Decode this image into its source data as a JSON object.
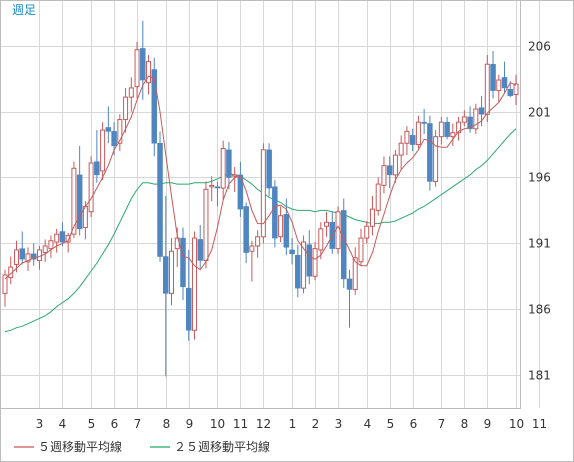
{
  "period_label": "週足",
  "legend": [
    {
      "label": "５週移動平均線",
      "color": "#c85a5a"
    },
    {
      "label": "２５週移動平均線",
      "color": "#2aa870"
    }
  ],
  "colors": {
    "up": "#c85a5a",
    "down": "#4f86c0",
    "grid": "#d7d7d7",
    "border": "#bcbcbc"
  },
  "chart_data": {
    "type": "candlestick",
    "y_ticks": [
      181,
      186,
      191,
      196,
      201,
      206
    ],
    "ylim": [
      178.5,
      209.4
    ],
    "x_tick_labels": [
      {
        "i": 6,
        "label": "3"
      },
      {
        "i": 10,
        "label": "4"
      },
      {
        "i": 15,
        "label": "5"
      },
      {
        "i": 19,
        "label": "6"
      },
      {
        "i": 23,
        "label": "7"
      },
      {
        "i": 28,
        "label": "8"
      },
      {
        "i": 32,
        "label": "9"
      },
      {
        "i": 37,
        "label": "10"
      },
      {
        "i": 41,
        "label": "11"
      },
      {
        "i": 45,
        "label": "12"
      },
      {
        "i": 50,
        "label": "1"
      },
      {
        "i": 54,
        "label": "2"
      },
      {
        "i": 58,
        "label": "3"
      },
      {
        "i": 63,
        "label": "4"
      },
      {
        "i": 67,
        "label": "5"
      },
      {
        "i": 71,
        "label": "6"
      },
      {
        "i": 76,
        "label": "7"
      },
      {
        "i": 80,
        "label": "8"
      },
      {
        "i": 84,
        "label": "9"
      },
      {
        "i": 89,
        "label": "10"
      },
      {
        "i": 93,
        "label": "11"
      }
    ],
    "candles": [
      [
        187.2,
        189.0,
        186.2,
        188.6
      ],
      [
        188.4,
        190.0,
        187.9,
        189.2
      ],
      [
        189.4,
        191.2,
        188.8,
        190.5
      ],
      [
        190.6,
        191.9,
        189.4,
        189.8
      ],
      [
        189.6,
        190.7,
        188.9,
        190.2
      ],
      [
        190.2,
        191.0,
        189.3,
        189.8
      ],
      [
        189.7,
        190.8,
        189.0,
        190.5
      ],
      [
        190.3,
        191.3,
        189.6,
        190.8
      ],
      [
        190.6,
        191.6,
        189.9,
        191.2
      ],
      [
        191.1,
        192.1,
        190.3,
        191.7
      ],
      [
        191.9,
        192.6,
        190.8,
        191.1
      ],
      [
        191.1,
        191.8,
        190.3,
        191.6
      ],
      [
        191.7,
        197.2,
        191.4,
        196.7
      ],
      [
        196.2,
        198.4,
        191.6,
        192.1
      ],
      [
        192.2,
        194.2,
        191.3,
        193.8
      ],
      [
        193.4,
        197.6,
        193.0,
        197.1
      ],
      [
        197.2,
        199.6,
        195.6,
        196.2
      ],
      [
        196.5,
        200.2,
        195.8,
        199.6
      ],
      [
        199.8,
        201.4,
        198.6,
        199.5
      ],
      [
        199.5,
        200.2,
        197.7,
        198.4
      ],
      [
        198.6,
        200.8,
        198.0,
        200.4
      ],
      [
        200.4,
        202.8,
        199.4,
        202.1
      ],
      [
        202.1,
        203.6,
        201.0,
        202.8
      ],
      [
        202.9,
        206.3,
        202.0,
        205.7
      ],
      [
        205.8,
        207.9,
        201.9,
        203.4
      ],
      [
        203.2,
        205.3,
        202.3,
        204.8
      ],
      [
        204.2,
        205.1,
        197.6,
        198.6
      ],
      [
        198.6,
        199.5,
        189.6,
        190.0
      ],
      [
        190.0,
        194.6,
        180.9,
        187.2
      ],
      [
        187.2,
        191.4,
        186.3,
        190.4
      ],
      [
        190.6,
        192.2,
        189.2,
        191.4
      ],
      [
        191.4,
        192.2,
        186.7,
        187.7
      ],
      [
        187.6,
        190.5,
        183.6,
        184.4
      ],
      [
        184.4,
        191.9,
        183.7,
        191.4
      ],
      [
        191.3,
        192.4,
        189.1,
        189.7
      ],
      [
        189.7,
        195.7,
        189.1,
        195.1
      ],
      [
        195.3,
        196.1,
        194.2,
        195.4
      ],
      [
        195.3,
        195.7,
        193.8,
        195.2
      ],
      [
        195.2,
        198.8,
        194.3,
        198.2
      ],
      [
        198.1,
        198.7,
        195.1,
        196.0
      ],
      [
        196.1,
        196.8,
        194.9,
        196.2
      ],
      [
        196.2,
        197.2,
        193.0,
        193.6
      ],
      [
        193.8,
        194.1,
        189.5,
        190.3
      ],
      [
        190.4,
        191.2,
        188.1,
        190.8
      ],
      [
        190.8,
        192.0,
        189.9,
        191.5
      ],
      [
        191.5,
        198.6,
        191.0,
        198.1
      ],
      [
        198.1,
        198.6,
        194.6,
        195.2
      ],
      [
        195.3,
        195.8,
        190.7,
        191.4
      ],
      [
        191.5,
        193.8,
        191.1,
        193.1
      ],
      [
        193.2,
        194.4,
        190.1,
        190.7
      ],
      [
        190.5,
        191.4,
        189.4,
        190.2
      ],
      [
        190.1,
        190.9,
        186.9,
        187.6
      ],
      [
        187.6,
        191.6,
        187.2,
        191.1
      ],
      [
        190.9,
        192.0,
        187.9,
        188.5
      ],
      [
        188.5,
        191.1,
        188.2,
        190.6
      ],
      [
        190.5,
        192.6,
        189.8,
        192.1
      ],
      [
        192.3,
        193.4,
        191.5,
        192.6
      ],
      [
        192.6,
        193.4,
        190.2,
        190.6
      ],
      [
        190.6,
        193.8,
        190.2,
        193.4
      ],
      [
        193.5,
        194.4,
        187.6,
        188.3
      ],
      [
        188.3,
        189.0,
        184.6,
        187.5
      ],
      [
        187.5,
        190.7,
        187.1,
        189.9
      ],
      [
        189.6,
        192.1,
        189.3,
        191.4
      ],
      [
        191.4,
        192.7,
        191.0,
        192.3
      ],
      [
        192.3,
        194.6,
        191.6,
        193.6
      ],
      [
        193.5,
        196.0,
        193.1,
        195.5
      ],
      [
        195.4,
        197.6,
        194.8,
        196.9
      ],
      [
        196.9,
        197.6,
        195.2,
        196.2
      ],
      [
        196.2,
        198.1,
        195.6,
        197.7
      ],
      [
        197.7,
        199.2,
        196.6,
        198.6
      ],
      [
        198.6,
        199.9,
        197.7,
        199.5
      ],
      [
        199.2,
        199.7,
        198.0,
        198.5
      ],
      [
        198.5,
        200.7,
        198.2,
        200.2
      ],
      [
        200.2,
        201.2,
        199.3,
        200.1
      ],
      [
        200.1,
        200.7,
        195.0,
        195.7
      ],
      [
        195.7,
        199.6,
        195.3,
        199.1
      ],
      [
        199.1,
        200.6,
        198.5,
        200.2
      ],
      [
        200.2,
        200.6,
        198.9,
        199.1
      ],
      [
        199.1,
        200.1,
        198.4,
        199.4
      ],
      [
        199.4,
        200.6,
        198.8,
        200.2
      ],
      [
        200.2,
        201.1,
        199.9,
        200.6
      ],
      [
        200.6,
        201.4,
        199.4,
        199.7
      ],
      [
        199.7,
        201.6,
        199.3,
        201.2
      ],
      [
        201.3,
        202.2,
        199.9,
        200.8
      ],
      [
        200.8,
        205.3,
        200.2,
        204.6
      ],
      [
        204.6,
        205.6,
        202.0,
        202.6
      ],
      [
        202.6,
        203.8,
        201.7,
        203.4
      ],
      [
        203.6,
        204.8,
        202.4,
        202.8
      ],
      [
        202.7,
        203.3,
        202.1,
        202.2
      ],
      [
        202.3,
        203.8,
        201.5,
        203.1
      ]
    ],
    "ma5": [
      188.3,
      188.7,
      189.1,
      189.5,
      189.7,
      189.9,
      190.0,
      190.2,
      190.5,
      190.8,
      191.0,
      191.2,
      192.3,
      193.0,
      193.8,
      194.4,
      195.2,
      196.0,
      196.9,
      198.1,
      198.8,
      199.7,
      200.6,
      201.9,
      203.0,
      203.7,
      203.5,
      201.0,
      197.7,
      194.6,
      191.6,
      190.0,
      189.9,
      189.3,
      189.0,
      189.6,
      190.5,
      192.2,
      194.3,
      195.5,
      196.0,
      196.1,
      195.0,
      193.5,
      192.5,
      192.5,
      193.1,
      193.8,
      193.9,
      193.6,
      192.6,
      191.2,
      190.6,
      190.0,
      189.8,
      190.1,
      190.8,
      191.6,
      192.3,
      191.4,
      190.5,
      189.6,
      189.3,
      189.3,
      190.3,
      191.9,
      193.2,
      194.6,
      195.8,
      196.6,
      197.1,
      197.5,
      198.1,
      198.9,
      198.8,
      198.4,
      198.3,
      198.3,
      198.9,
      199.5,
      199.7,
      199.8,
      200.0,
      200.3,
      200.9,
      201.3,
      201.7,
      202.4,
      203.2,
      203.0
    ],
    "ma25": [
      184.3,
      184.4,
      184.6,
      184.7,
      184.9,
      185.1,
      185.3,
      185.5,
      185.8,
      186.2,
      186.5,
      186.8,
      187.2,
      187.7,
      188.3,
      188.9,
      189.5,
      190.2,
      190.9,
      191.7,
      192.6,
      193.5,
      194.4,
      195.1,
      195.6,
      195.6,
      195.5,
      195.5,
      195.6,
      195.6,
      195.5,
      195.5,
      195.5,
      195.6,
      195.6,
      195.6,
      195.7,
      195.9,
      196.1,
      196.3,
      196.2,
      196.1,
      195.8,
      195.5,
      195.1,
      194.8,
      194.5,
      194.3,
      194.1,
      193.8,
      193.6,
      193.5,
      193.5,
      193.5,
      193.4,
      193.5,
      193.5,
      193.4,
      193.3,
      193.2,
      193.0,
      192.8,
      192.7,
      192.6,
      192.5,
      192.5,
      192.6,
      192.6,
      192.7,
      192.9,
      193.1,
      193.3,
      193.6,
      193.8,
      194.1,
      194.4,
      194.7,
      195.0,
      195.3,
      195.6,
      195.9,
      196.2,
      196.6,
      196.9,
      197.3,
      197.8,
      198.3,
      198.8,
      199.3,
      199.7
    ]
  }
}
